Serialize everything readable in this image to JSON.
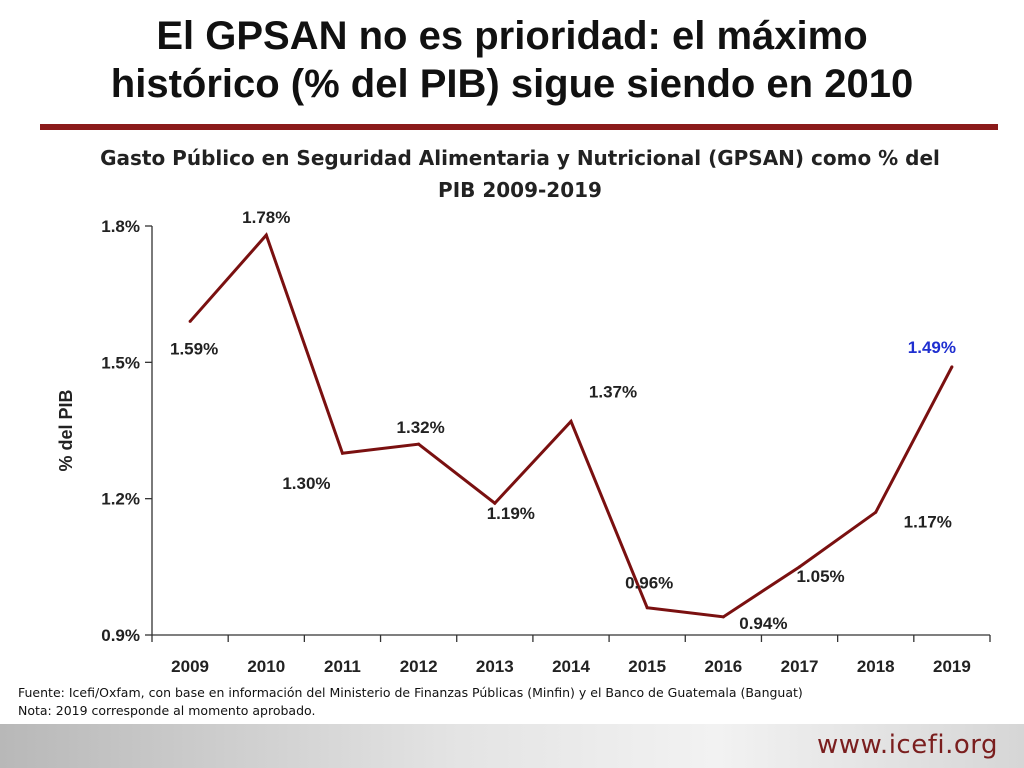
{
  "slide": {
    "title_line1": "El GPSAN no es prioridad: el máximo",
    "title_line2": "histórico (% del PIB) sigue siendo en 2010",
    "accent_color": "#8b1a1a"
  },
  "chart_data": {
    "type": "line",
    "title_line1": "Gasto Público en Seguridad Alimentaria y Nutricional (GPSAN) como % del",
    "title_line2": "PIB 2009-2019",
    "xlabel": "",
    "ylabel": "% del PIB",
    "categories": [
      "2009",
      "2010",
      "2011",
      "2012",
      "2013",
      "2014",
      "2015",
      "2016",
      "2017",
      "2018",
      "2019"
    ],
    "series": [
      {
        "name": "GPSAN % del PIB",
        "values": [
          1.59,
          1.78,
          1.3,
          1.32,
          1.19,
          1.37,
          0.96,
          0.94,
          1.05,
          1.17,
          1.49
        ],
        "color": "#7a1010"
      }
    ],
    "data_labels": [
      "1.59%",
      "1.78%",
      "1.30%",
      "1.32%",
      "1.19%",
      "1.37%",
      "0.96%",
      "0.94%",
      "1.05%",
      "1.17%",
      "1.49%"
    ],
    "label_colors": [
      "#222222",
      "#222222",
      "#222222",
      "#222222",
      "#222222",
      "#222222",
      "#222222",
      "#222222",
      "#222222",
      "#222222",
      "#1f2fd0"
    ],
    "y_ticks": [
      0.9,
      1.2,
      1.5,
      1.8
    ],
    "y_tick_labels": [
      "0.9%",
      "1.2%",
      "1.5%",
      "1.8%"
    ],
    "ylim": [
      0.9,
      1.8
    ],
    "grid": false,
    "legend": "none"
  },
  "notes": {
    "source": "Fuente: Icefi/Oxfam, con base en información del Ministerio de Finanzas Públicas (Minfin) y el Banco de Guatemala (Banguat)",
    "note": "Nota: 2019 corresponde al momento aprobado."
  },
  "footer": {
    "url": "www.icefi.org"
  }
}
